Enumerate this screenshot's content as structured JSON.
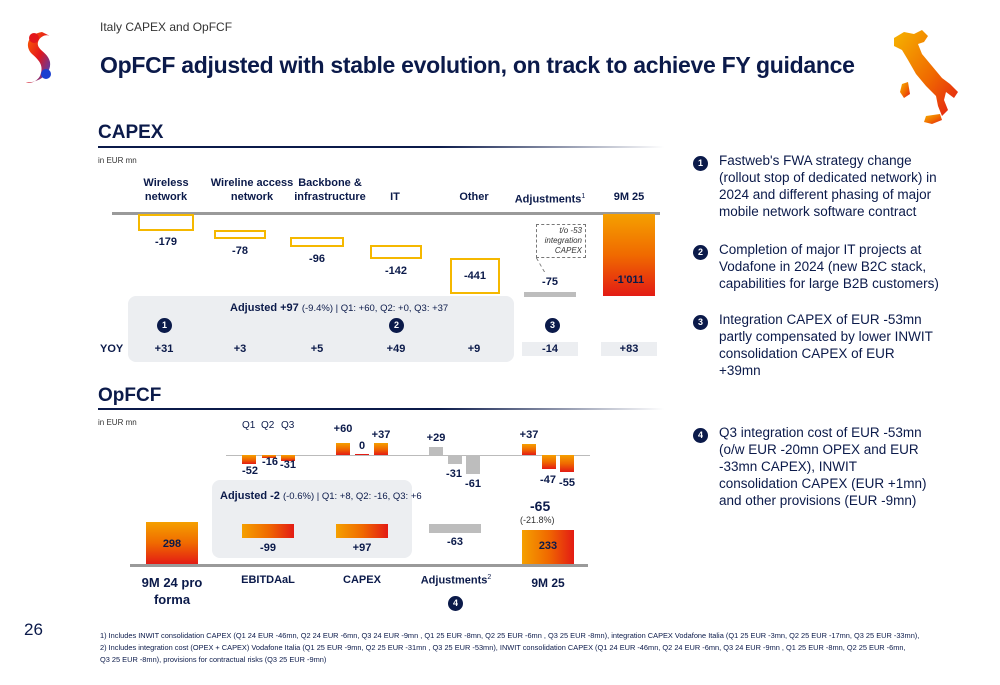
{
  "header": {
    "supertitle": "Italy CAPEX and OpFCF",
    "title": "OpFCF adjusted with stable evolution, on track to achieve FY guidance",
    "page_number": "26"
  },
  "capex": {
    "section_title": "CAPEX",
    "unit": "in EUR mn",
    "col_wireless": "Wireless network",
    "col_wireline": "Wireline access network",
    "col_backbone": "Backbone & infrastructure",
    "col_it": "IT",
    "col_other": "Other",
    "col_adjustments": "Adjustments",
    "col_adjustments_sup": "1",
    "col_9m25": "9M 25",
    "note": "t/o -53 integration CAPEX",
    "adjusted_bold": "Adjusted +97",
    "adjusted_rest": "(-9.4%) | Q1: +60, Q2: +0, Q3: +37",
    "yoy_label": "YOY",
    "circle_1": "1",
    "circle_2": "2",
    "circle_3": "3"
  },
  "opfcf": {
    "section_title": "OpFCF",
    "unit": "in EUR mn",
    "q1": "Q1",
    "q2": "Q2",
    "q3": "Q3",
    "adjusted_bold": "Adjusted -2",
    "adjusted_rest": "(-0.6%) | Q1: +8, Q2: -16, Q3: +6",
    "delta_total": "-65",
    "delta_pct": "(-21.8%)",
    "cat_9m24": "9M 24 pro forma",
    "cat_ebitdaal": "EBITDAaL",
    "cat_capex": "CAPEX",
    "cat_adjustments": "Adjustments",
    "cat_adjustments_sup": "2",
    "cat_9m25": "9M 25",
    "circle_4": "4"
  },
  "commentary": {
    "n1": "1",
    "item1": "Fastweb's FWA strategy change (rollout stop of dedicated network) in 2024 and different phasing of major mobile network software contract",
    "n2": "2",
    "item2": "Completion of major IT projects at Vodafone in 2024 (new B2C stack, capabilities for large B2B customers)",
    "n3": "3",
    "item3": "Integration CAPEX of EUR -53mn partly compensated by lower INWIT consolidation CAPEX of EUR +39mn",
    "n4": "4",
    "item4": "Q3 integration cost of EUR -53mn (o/w EUR -20mn OPEX and EUR -33mn CAPEX), INWIT consolidation CAPEX (EUR +1mn) and other provisions (EUR -9mn)"
  },
  "footnotes": {
    "f1": "1) Includes INWIT consolidation CAPEX (Q1 24 EUR -46mn, Q2 24 EUR -6mn, Q3 24 EUR -9mn , Q1 25 EUR -8mn, Q2 25 EUR -6mn , Q3 25 EUR -8mn), integration CAPEX Vodafone Italia (Q1 25 EUR -3mn, Q2 25 EUR -17mn,  Q3 25 EUR -33mn),",
    "f2": "2) Includes integration cost (OPEX + CAPEX) Vodafone Italia (Q1 25 EUR -9mn, Q2 25 EUR -31mn , Q3 25 EUR -53mn), INWIT consolidation CAPEX (Q1 24 EUR -46mn, Q2 24 EUR -6mn, Q3 24 EUR -9mn , Q1 25 EUR -8mn, Q2 25 EUR -6mn,",
    "f3": "Q3 25 EUR -8mn), provisions for contractual risks (Q3 25 EUR -9mn)"
  },
  "chart_data": [
    {
      "type": "bar",
      "title": "CAPEX",
      "ylabel": "EUR mn",
      "categories": [
        "Wireless network",
        "Wireline access network",
        "Backbone & infrastructure",
        "IT",
        "Other",
        "Adjustments",
        "9M 25"
      ],
      "values": [
        -179,
        -78,
        -96,
        -142,
        -441,
        -75,
        -1011
      ],
      "labels": [
        "-179",
        "-78",
        "-96",
        "-142",
        "-441",
        "-75",
        "-1'011"
      ],
      "yoy": [
        31,
        3,
        5,
        49,
        9,
        -14,
        83
      ],
      "yoy_labels": [
        "+31",
        "+3",
        "+5",
        "+49",
        "+9",
        "-14",
        "+83"
      ]
    },
    {
      "type": "bar",
      "title": "OpFCF",
      "ylabel": "EUR mn",
      "categories": [
        "9M 24 pro forma",
        "EBITDAaL",
        "CAPEX",
        "Adjustments",
        "9M 25"
      ],
      "values": [
        298,
        -99,
        97,
        -63,
        233
      ],
      "labels": [
        "298",
        "-99",
        "+97",
        "-63",
        "233"
      ],
      "quarterly_deltas": [
        {
          "category": "EBITDAaL",
          "quarters": [
            "Q1",
            "Q2",
            "Q3"
          ],
          "values": [
            -52,
            -16,
            -31
          ]
        },
        {
          "category": "CAPEX",
          "quarters": [
            "Q1",
            "Q2",
            "Q3"
          ],
          "values": [
            60,
            0,
            37
          ]
        },
        {
          "category": "Adjustments",
          "quarters": [
            "Q1",
            "Q2",
            "Q3"
          ],
          "values": [
            29,
            -31,
            -61
          ]
        },
        {
          "category": "9M 25",
          "quarters": [
            "Q1",
            "Q2",
            "Q3"
          ],
          "values": [
            37,
            -47,
            -55
          ]
        }
      ],
      "delta_total": -65,
      "delta_pct": "-21.8%"
    }
  ]
}
